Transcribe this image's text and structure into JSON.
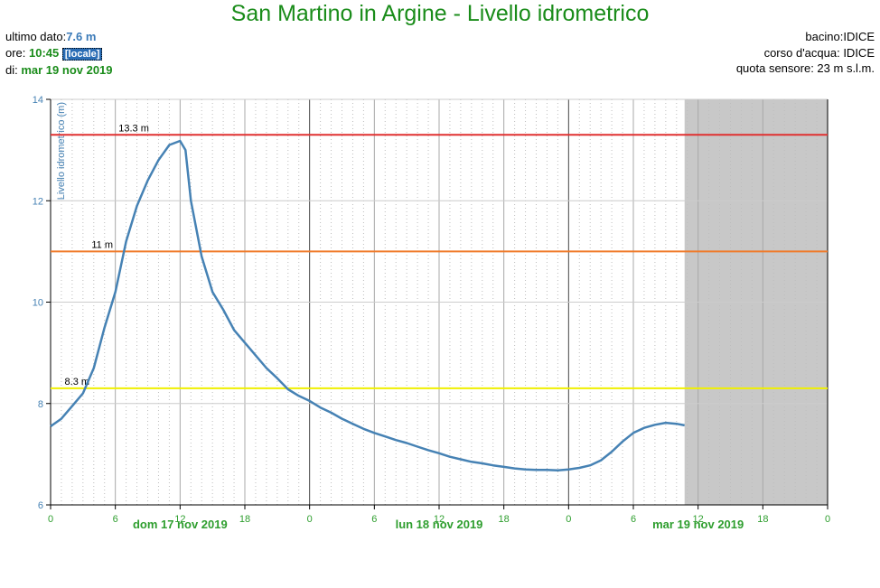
{
  "header": {
    "title": "San Martino in Argine - Livello idrometrico",
    "last_value_label": "ultimo dato:",
    "last_value": "7.6 m",
    "time_label": "ore: ",
    "time_value": "10:45",
    "time_badge": "[locale]",
    "date_label": "di: ",
    "date_value": "mar 19 nov 2019",
    "basin": "bacino:IDICE",
    "river": "corso d'acqua: IDICE",
    "sensor_altitude": "quota sensore: 23 m s.l.m."
  },
  "chart_data": {
    "type": "line",
    "ylabel": "Livello idrometrico (m)",
    "ylim": [
      6,
      14
    ],
    "yticks": [
      6,
      8,
      10,
      12,
      14
    ],
    "x_unit": "hours since 2019-11-17 00:00",
    "xlim": [
      0,
      72
    ],
    "xticks": [
      {
        "hour": 0,
        "label": "0"
      },
      {
        "hour": 6,
        "label": "6"
      },
      {
        "hour": 12,
        "label": "12"
      },
      {
        "hour": 18,
        "label": "18"
      },
      {
        "hour": 24,
        "label": "0"
      },
      {
        "hour": 30,
        "label": "6"
      },
      {
        "hour": 36,
        "label": "12"
      },
      {
        "hour": 42,
        "label": "18"
      },
      {
        "hour": 48,
        "label": "0"
      },
      {
        "hour": 54,
        "label": "6"
      },
      {
        "hour": 60,
        "label": "12"
      },
      {
        "hour": 66,
        "label": "18"
      },
      {
        "hour": 72,
        "label": "0"
      }
    ],
    "day_labels": [
      {
        "hour": 12,
        "label": "dom 17 nov 2019"
      },
      {
        "hour": 36,
        "label": "lun 18 nov 2019"
      },
      {
        "hour": 60,
        "label": "mar 19 nov 2019"
      }
    ],
    "thresholds": [
      {
        "value": 13.3,
        "label": "13.3 m",
        "color": "#e03030"
      },
      {
        "value": 11,
        "label": "11 m",
        "color": "#f07a2a"
      },
      {
        "value": 8.3,
        "label": "8.3 m",
        "color": "#f0f000"
      }
    ],
    "future_shade_from_hour": 58.75,
    "series": [
      {
        "color": "#4682b4",
        "points": [
          [
            0,
            7.55
          ],
          [
            1,
            7.7
          ],
          [
            2,
            7.95
          ],
          [
            3,
            8.2
          ],
          [
            4,
            8.7
          ],
          [
            5,
            9.5
          ],
          [
            6,
            10.2
          ],
          [
            7,
            11.2
          ],
          [
            8,
            11.9
          ],
          [
            9,
            12.4
          ],
          [
            10,
            12.8
          ],
          [
            11,
            13.1
          ],
          [
            12,
            13.18
          ],
          [
            12.5,
            13.0
          ],
          [
            13,
            12.0
          ],
          [
            14,
            10.9
          ],
          [
            15,
            10.2
          ],
          [
            16,
            9.85
          ],
          [
            17,
            9.45
          ],
          [
            18,
            9.2
          ],
          [
            19,
            8.95
          ],
          [
            20,
            8.7
          ],
          [
            21,
            8.5
          ],
          [
            22,
            8.28
          ],
          [
            23,
            8.15
          ],
          [
            24,
            8.05
          ],
          [
            25,
            7.92
          ],
          [
            26,
            7.82
          ],
          [
            27,
            7.7
          ],
          [
            28,
            7.6
          ],
          [
            29,
            7.5
          ],
          [
            30,
            7.42
          ],
          [
            31,
            7.35
          ],
          [
            32,
            7.28
          ],
          [
            33,
            7.22
          ],
          [
            34,
            7.15
          ],
          [
            35,
            7.08
          ],
          [
            36,
            7.02
          ],
          [
            37,
            6.95
          ],
          [
            38,
            6.9
          ],
          [
            39,
            6.85
          ],
          [
            40,
            6.82
          ],
          [
            41,
            6.78
          ],
          [
            42,
            6.75
          ],
          [
            43,
            6.72
          ],
          [
            44,
            6.7
          ],
          [
            45,
            6.69
          ],
          [
            46,
            6.69
          ],
          [
            47,
            6.68
          ],
          [
            48,
            6.7
          ],
          [
            49,
            6.73
          ],
          [
            50,
            6.78
          ],
          [
            51,
            6.88
          ],
          [
            52,
            7.05
          ],
          [
            53,
            7.25
          ],
          [
            54,
            7.42
          ],
          [
            55,
            7.52
          ],
          [
            56,
            7.58
          ],
          [
            57,
            7.62
          ],
          [
            58,
            7.6
          ],
          [
            58.75,
            7.57
          ]
        ]
      }
    ]
  }
}
